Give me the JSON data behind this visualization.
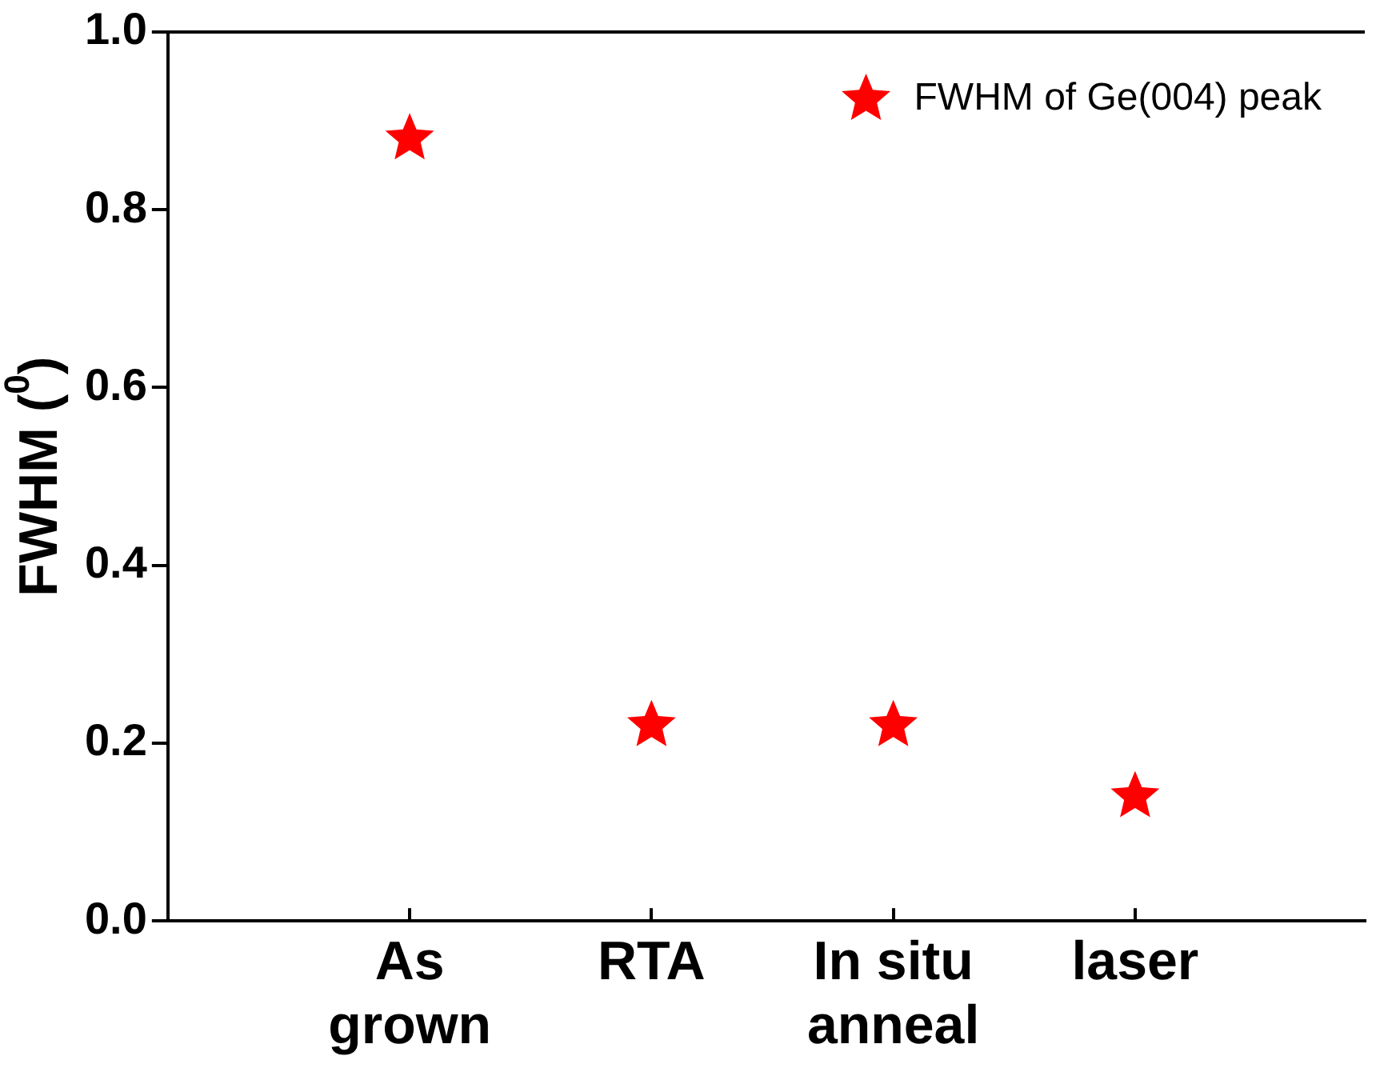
{
  "chart_data": {
    "type": "scatter",
    "ylabel": "FWHM ($^{0}$)",
    "categories": [
      "As\ngrown",
      "RTA",
      "In situ\nanneal",
      "laser"
    ],
    "series": [
      {
        "name": "FWHM of Ge(004) peak",
        "color": "#ff0000",
        "values": [
          0.88,
          0.22,
          0.22,
          0.14
        ]
      }
    ],
    "ylim": [
      0,
      1
    ],
    "yticks": [
      {
        "value": 0,
        "label": "0.0"
      },
      {
        "value": 0.2,
        "label": "0.2"
      },
      {
        "value": 0.4,
        "label": "0.4"
      },
      {
        "value": 0.6,
        "label": "0.6"
      },
      {
        "value": 0.8,
        "label": "0.8"
      },
      {
        "value": 1,
        "label": "1.0"
      }
    ],
    "grid": false,
    "legend": "top right",
    "marker": "star"
  }
}
